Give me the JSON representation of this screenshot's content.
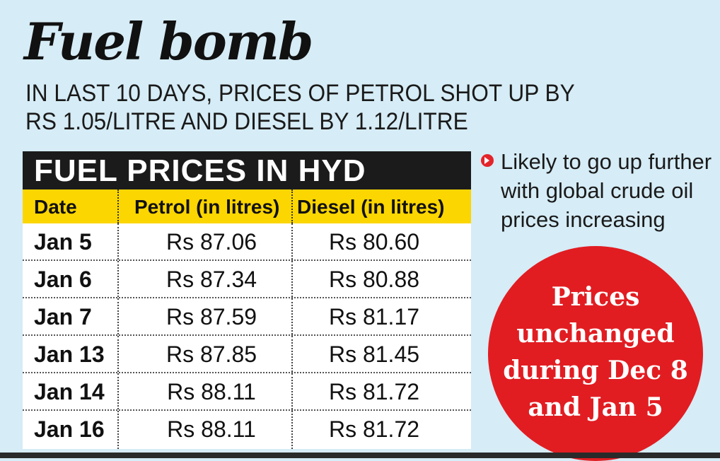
{
  "headline": "Fuel bomb",
  "subhead": {
    "line1": "IN LAST 10 DAYS, PRICES OF PETROL SHOT UP BY",
    "line2": "RS 1.05/LITRE AND DIESEL BY 1.12/LITRE"
  },
  "table": {
    "title": "FUEL PRICES IN HYD",
    "headers": {
      "date": "Date",
      "petrol": "Petrol (in litres)",
      "diesel": "Diesel (in litres)"
    },
    "rows": [
      {
        "date": "Jan 5",
        "petrol": "Rs 87.06",
        "diesel": "Rs 80.60"
      },
      {
        "date": "Jan 6",
        "petrol": "Rs 87.34",
        "diesel": "Rs 80.88"
      },
      {
        "date": "Jan 7",
        "petrol": "Rs 87.59",
        "diesel": "Rs 81.17"
      },
      {
        "date": "Jan 13",
        "petrol": "Rs 87.85",
        "diesel": "Rs 81.45"
      },
      {
        "date": "Jan 14",
        "petrol": "Rs 88.11",
        "diesel": "Rs 81.72"
      },
      {
        "date": "Jan 16",
        "petrol": "Rs 88.11",
        "diesel": "Rs 81.72"
      }
    ]
  },
  "note": {
    "icon": "bullet-arrow-icon",
    "line1": "Likely to go up further",
    "line2": "with global crude oil",
    "line3": "prices increasing"
  },
  "callout": {
    "line1": "Prices",
    "line2": "unchanged",
    "line3": "during Dec 8",
    "line4": "and Jan 5"
  },
  "colors": {
    "background": "#d6ecf6",
    "title_bar": "#1b1b1b",
    "header_bar": "#fcd600",
    "callout": "#e11d22"
  }
}
